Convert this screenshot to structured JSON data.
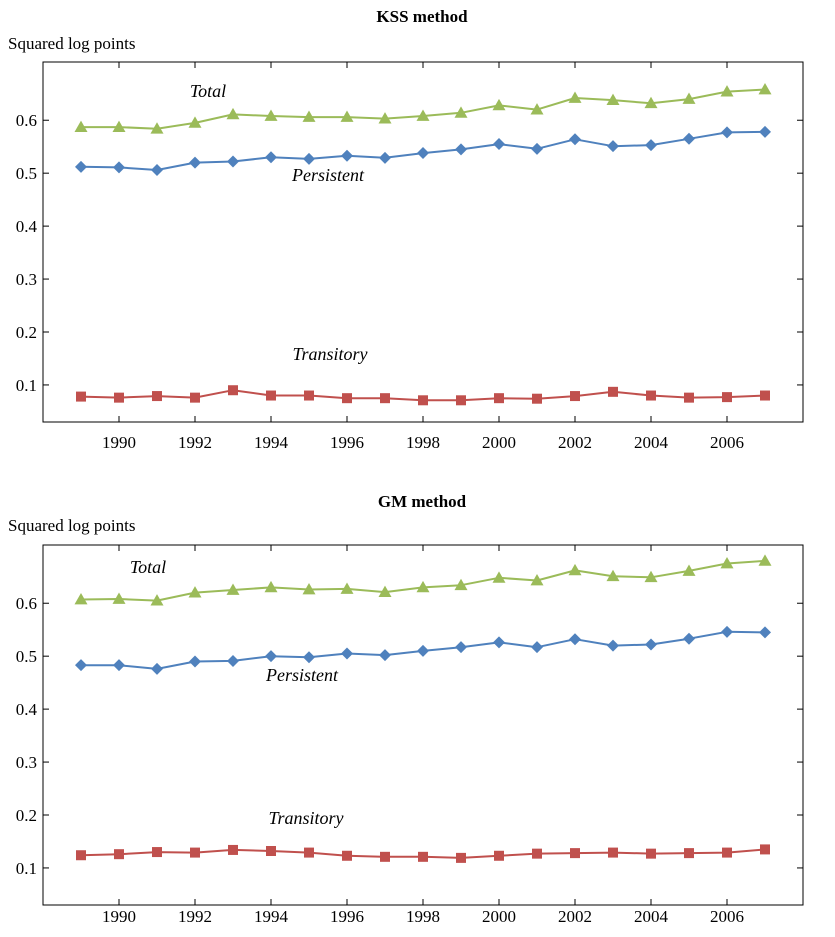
{
  "colors": {
    "total": "#9bbb59",
    "persistent": "#4f81bd",
    "transitory": "#c0504d",
    "axis": "#000000"
  },
  "chart_data": [
    {
      "type": "line",
      "title": "KSS method",
      "ylabel": "Squared log points",
      "xlabel": "",
      "xlim": [
        1988,
        2008
      ],
      "ylim": [
        0.03,
        0.71
      ],
      "x_ticks": [
        1990,
        1992,
        1994,
        1996,
        1998,
        2000,
        2002,
        2004,
        2006
      ],
      "y_ticks": [
        0.1,
        0.2,
        0.3,
        0.4,
        0.5,
        0.6
      ],
      "grid": false,
      "legend": "none (inline series labels)",
      "x": [
        1989,
        1990,
        1991,
        1992,
        1993,
        1994,
        1995,
        1996,
        1997,
        1998,
        1999,
        2000,
        2001,
        2002,
        2003,
        2004,
        2005,
        2006,
        2007
      ],
      "series": [
        {
          "name": "Total",
          "color_key": "total",
          "marker": "triangle",
          "values": [
            0.587,
            0.587,
            0.584,
            0.595,
            0.611,
            0.608,
            0.606,
            0.606,
            0.603,
            0.608,
            0.614,
            0.628,
            0.62,
            0.642,
            0.638,
            0.632,
            0.64,
            0.654,
            0.658
          ]
        },
        {
          "name": "Persistent",
          "color_key": "persistent",
          "marker": "diamond",
          "values": [
            0.512,
            0.511,
            0.506,
            0.52,
            0.522,
            0.53,
            0.527,
            0.533,
            0.529,
            0.538,
            0.545,
            0.555,
            0.546,
            0.564,
            0.551,
            0.553,
            0.565,
            0.577,
            0.578
          ]
        },
        {
          "name": "Transitory",
          "color_key": "transitory",
          "marker": "square",
          "values": [
            0.078,
            0.076,
            0.079,
            0.076,
            0.09,
            0.08,
            0.08,
            0.075,
            0.075,
            0.071,
            0.071,
            0.075,
            0.074,
            0.079,
            0.087,
            0.08,
            0.076,
            0.077,
            0.08
          ]
        }
      ]
    },
    {
      "type": "line",
      "title": "GM method",
      "ylabel": "Squared log points",
      "xlabel": "",
      "xlim": [
        1988,
        2008
      ],
      "ylim": [
        0.03,
        0.71
      ],
      "x_ticks": [
        1990,
        1992,
        1994,
        1996,
        1998,
        2000,
        2002,
        2004,
        2006
      ],
      "y_ticks": [
        0.1,
        0.2,
        0.3,
        0.4,
        0.5,
        0.6
      ],
      "grid": false,
      "legend": "none (inline series labels)",
      "x": [
        1989,
        1990,
        1991,
        1992,
        1993,
        1994,
        1995,
        1996,
        1997,
        1998,
        1999,
        2000,
        2001,
        2002,
        2003,
        2004,
        2005,
        2006,
        2007
      ],
      "series": [
        {
          "name": "Total",
          "color_key": "total",
          "marker": "triangle",
          "values": [
            0.607,
            0.608,
            0.605,
            0.62,
            0.625,
            0.63,
            0.626,
            0.627,
            0.621,
            0.63,
            0.634,
            0.648,
            0.643,
            0.662,
            0.651,
            0.649,
            0.661,
            0.675,
            0.68
          ]
        },
        {
          "name": "Persistent",
          "color_key": "persistent",
          "marker": "diamond",
          "values": [
            0.483,
            0.483,
            0.476,
            0.49,
            0.491,
            0.5,
            0.498,
            0.505,
            0.502,
            0.51,
            0.517,
            0.526,
            0.517,
            0.532,
            0.52,
            0.522,
            0.533,
            0.546,
            0.545
          ]
        },
        {
          "name": "Transitory",
          "color_key": "transitory",
          "marker": "square",
          "values": [
            0.124,
            0.126,
            0.13,
            0.129,
            0.134,
            0.132,
            0.129,
            0.123,
            0.121,
            0.121,
            0.119,
            0.123,
            0.127,
            0.128,
            0.129,
            0.127,
            0.128,
            0.129,
            0.135
          ]
        }
      ]
    }
  ]
}
